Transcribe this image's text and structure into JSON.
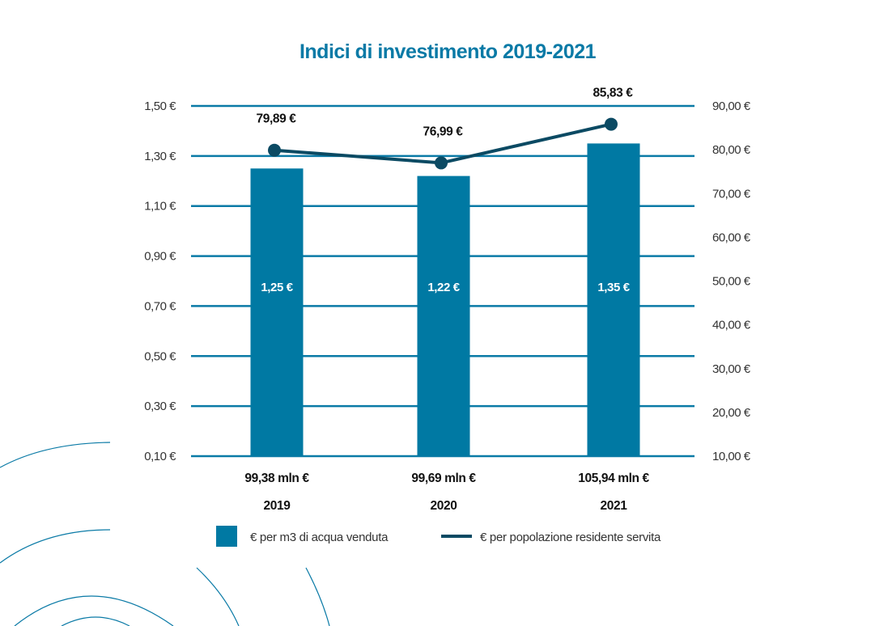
{
  "colors": {
    "title": "#0a7aa6",
    "bar": "#0079a3",
    "line": "#0b4a63",
    "grid": "#0a7aa6",
    "decoration": "#0a7aa6"
  },
  "chart_data": {
    "type": "bar",
    "title": "Indici di investimento 2019-2021",
    "categories": [
      "2019",
      "2020",
      "2021"
    ],
    "category_sublabels": [
      "99,38 mln €",
      "99,69 mln €",
      "105,94 mln €"
    ],
    "grid": true,
    "legend_position": "bottom",
    "y_left": {
      "label": "",
      "ticks": [
        "1,50 €",
        "1,30 €",
        "1,10 €",
        "0,90 €",
        "0,70 €",
        "0,50 €",
        "0,30 €",
        "0,10 €"
      ],
      "tick_values": [
        1.5,
        1.3,
        1.1,
        0.9,
        0.7,
        0.5,
        0.3,
        0.1
      ],
      "ylim": [
        0.1,
        1.5
      ]
    },
    "y_right": {
      "label": "",
      "ticks": [
        "90,00 €",
        "80,00 €",
        "70,00 €",
        "60,00 €",
        "50,00 €",
        "40,00 €",
        "30,00 €",
        "20,00 €",
        "10,00 €"
      ],
      "tick_values": [
        90,
        80,
        70,
        60,
        50,
        40,
        30,
        20,
        10
      ],
      "ylim": [
        10,
        90
      ]
    },
    "series": [
      {
        "name": "€ per m3 di acqua venduta",
        "type": "bar",
        "axis": "left",
        "values": [
          1.25,
          1.22,
          1.35
        ],
        "labels": [
          "1,25 €",
          "1,22 €",
          "1,35 €"
        ]
      },
      {
        "name": "€ per popolazione residente servita",
        "type": "line",
        "axis": "right",
        "values": [
          79.89,
          76.99,
          85.83
        ],
        "labels": [
          "79,89 €",
          "76,99 €",
          "85,83 €"
        ]
      }
    ]
  }
}
